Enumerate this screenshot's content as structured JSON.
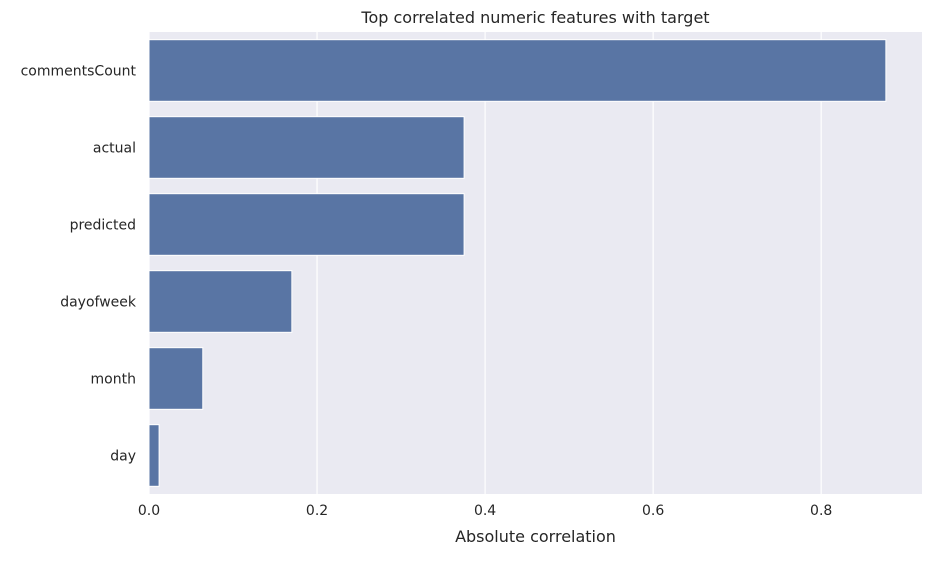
{
  "chart_data": {
    "type": "bar",
    "orientation": "horizontal",
    "title": "Top correlated numeric features with target",
    "xlabel": "Absolute correlation",
    "ylabel": "",
    "categories": [
      "commentsCount",
      "actual",
      "predicted",
      "dayofweek",
      "month",
      "day"
    ],
    "values": [
      0.877,
      0.375,
      0.375,
      0.17,
      0.064,
      0.012
    ],
    "xlim": [
      0,
      0.92
    ],
    "xticks": [
      0,
      0.2,
      0.4,
      0.6,
      0.8
    ],
    "xtick_labels": [
      "0.0",
      "0.2",
      "0.4",
      "0.6",
      "0.8"
    ],
    "grid": true,
    "bar_color": "#5975a4",
    "background_color": "#eaeaf2",
    "grid_color": "#ffffff"
  }
}
